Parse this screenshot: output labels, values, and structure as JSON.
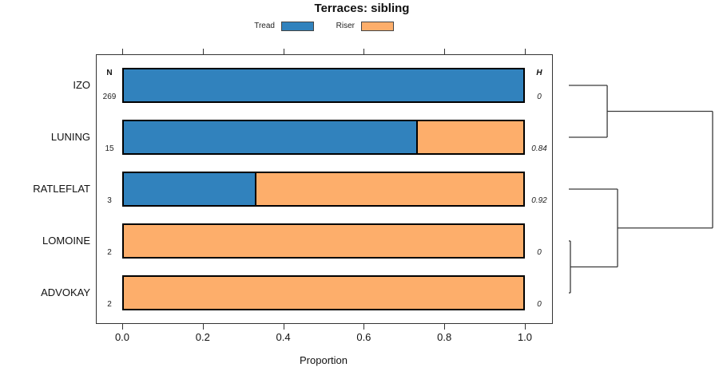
{
  "title": "Terraces: sibling",
  "xlabel": "Proportion",
  "columns": {
    "n_header": "N",
    "h_header": "H"
  },
  "legend": {
    "items": [
      {
        "label": "Tread",
        "color": "#3182BD"
      },
      {
        "label": "Riser",
        "color": "#FDAE6B"
      }
    ]
  },
  "chart_data": {
    "type": "bar",
    "orientation": "horizontal-stacked",
    "title": "Terraces: sibling",
    "xlabel": "Proportion",
    "xlim": [
      0,
      1
    ],
    "grid": false,
    "legend_position": "top",
    "categories": [
      "IZO",
      "LUNING",
      "RATLEFLAT",
      "LOMOINE",
      "ADVOKAY"
    ],
    "series": [
      {
        "name": "Tread",
        "color": "#3182BD",
        "values": [
          1.0,
          0.7333,
          0.3333,
          0.0,
          0.0
        ]
      },
      {
        "name": "Riser",
        "color": "#FDAE6B",
        "values": [
          0.0,
          0.2667,
          0.6667,
          1.0,
          1.0
        ]
      }
    ],
    "n_values": [
      "269",
      "15",
      "3",
      "2",
      "2"
    ],
    "h_values": [
      "0",
      "0.84",
      "0.92",
      "0",
      "0"
    ],
    "x_ticks": [
      0.0,
      0.2,
      0.4,
      0.6,
      0.8,
      1.0
    ],
    "x_tick_labels": [
      "0.0",
      "0.2",
      "0.4",
      "0.6",
      "0.8",
      "1.0"
    ],
    "dendrogram": {
      "orientation": "right",
      "line_color": "#3a3a3a",
      "merges": [
        {
          "left": {
            "leaf": 0
          },
          "right": {
            "leaf": 1
          },
          "height": 0.267
        },
        {
          "left": {
            "leaf": 3
          },
          "right": {
            "leaf": 4
          },
          "height": 0.011
        },
        {
          "left": {
            "leaf": 2
          },
          "right": {
            "merge": 1
          },
          "height": 0.339
        },
        {
          "left": {
            "merge": 0
          },
          "right": {
            "merge": 2
          },
          "height": 1.0
        }
      ]
    }
  }
}
